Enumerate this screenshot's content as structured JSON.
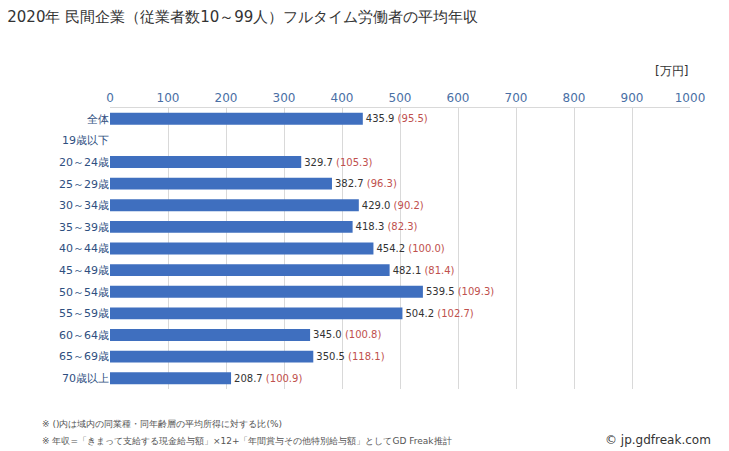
{
  "chart_data": {
    "type": "bar",
    "orientation": "horizontal",
    "title": "2020年 民間企業（従業者数10～99人）フルタイム労働者の平均年収",
    "unit_label": "[万円]",
    "categories": [
      "全体",
      "19歳以下",
      "20～24歳",
      "25～29歳",
      "30～34歳",
      "35～39歳",
      "40～44歳",
      "45～49歳",
      "50～54歳",
      "55～59歳",
      "60～64歳",
      "65～69歳",
      "70歳以上"
    ],
    "values": [
      435.9,
      null,
      329.7,
      382.7,
      429.0,
      418.3,
      454.2,
      482.1,
      539.5,
      504.2,
      345.0,
      350.5,
      208.7
    ],
    "value_labels": [
      "435.9",
      null,
      "329.7",
      "382.7",
      "429.0",
      "418.3",
      "454.2",
      "482.1",
      "539.5",
      "504.2",
      "345.0",
      "350.5",
      "208.7"
    ],
    "ratio_labels": [
      "(95.5)",
      null,
      "(105.3)",
      "(96.3)",
      "(90.2)",
      "(82.3)",
      "(100.0)",
      "(81.4)",
      "(109.3)",
      "(102.7)",
      "(100.8)",
      "(118.1)",
      "(100.9)"
    ],
    "color": "#3f6fbf",
    "xlim": [
      0,
      1000
    ],
    "xticks": [
      0,
      100,
      200,
      300,
      400,
      500,
      600,
      700,
      800,
      900,
      1000
    ],
    "grid": true,
    "data_labels": true,
    "notes": [
      "※ ()内は域内の同業種・同年齢層の平均所得に対する比(%)",
      "※ 年収=「きまって支給する現金給与額」×12+「年間賞与その他特別給与額」としてGD Freak推計"
    ],
    "source": "© jp.gdfreak.com"
  }
}
